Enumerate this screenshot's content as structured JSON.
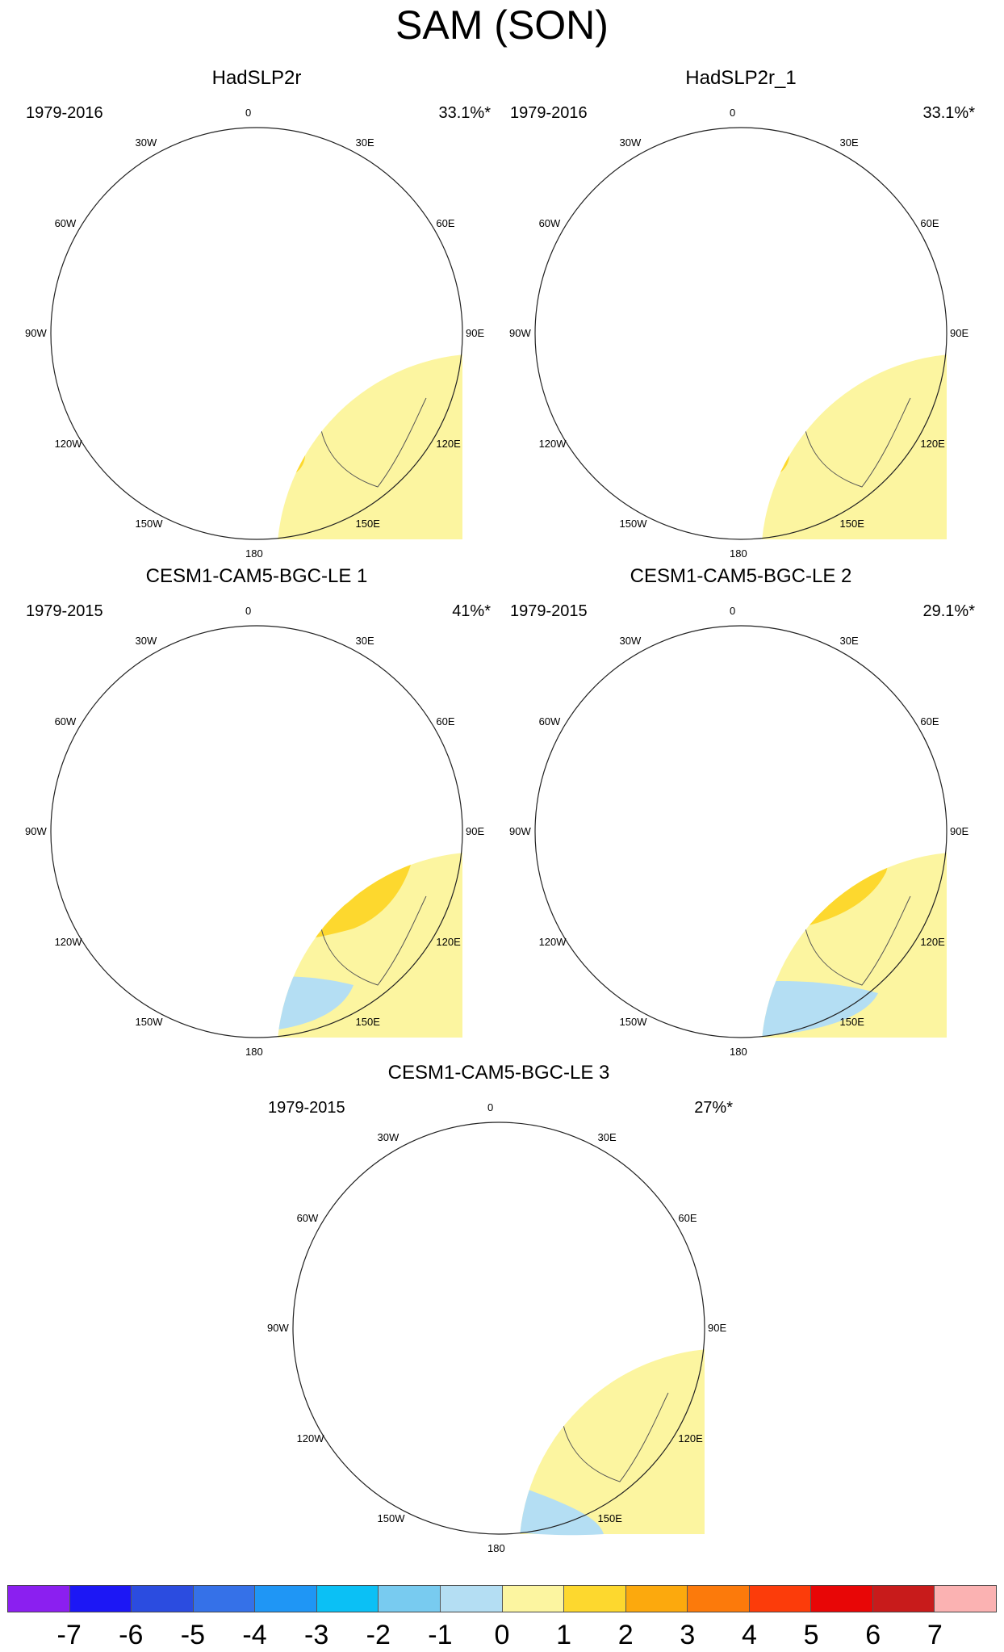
{
  "title": "SAM (SON)",
  "panels": [
    {
      "name": "HadSLP2r",
      "years": "1979-2016",
      "pct": "33.1%*"
    },
    {
      "name": "HadSLP2r_1",
      "years": "1979-2016",
      "pct": "33.1%*"
    },
    {
      "name": "CESM1-CAM5-BGC-LE 1",
      "years": "1979-2015",
      "pct": "41%*"
    },
    {
      "name": "CESM1-CAM5-BGC-LE 2",
      "years": "1979-2015",
      "pct": "29.1%*"
    },
    {
      "name": "CESM1-CAM5-BGC-LE 3",
      "years": "1979-2015",
      "pct": "27%*"
    }
  ],
  "lon_labels": {
    "top": "0",
    "top_right": "30E",
    "upper_right": "60E",
    "right": "90E",
    "lower_right": "120E",
    "bottom_right": "150E",
    "bottom": "180",
    "bottom_left": "150W",
    "lower_left": "120W",
    "left": "90W",
    "upper_left": "60W",
    "top_left": "30W"
  },
  "colorbar": {
    "ticks": [
      "-7",
      "-6",
      "-5",
      "-4",
      "-3",
      "-2",
      "-1",
      "0",
      "1",
      "2",
      "3",
      "4",
      "5",
      "6",
      "7"
    ],
    "colors": [
      "#8b1ff0",
      "#1c17f5",
      "#2b4ce0",
      "#3571e8",
      "#1f96f5",
      "#0bc0f5",
      "#78cbf0",
      "#b4def3",
      "#fcf5a0",
      "#fdd82e",
      "#fca90d",
      "#fc7a0b",
      "#fc3c0a",
      "#e80606",
      "#c81b1b",
      "#fbb2b2"
    ]
  }
}
